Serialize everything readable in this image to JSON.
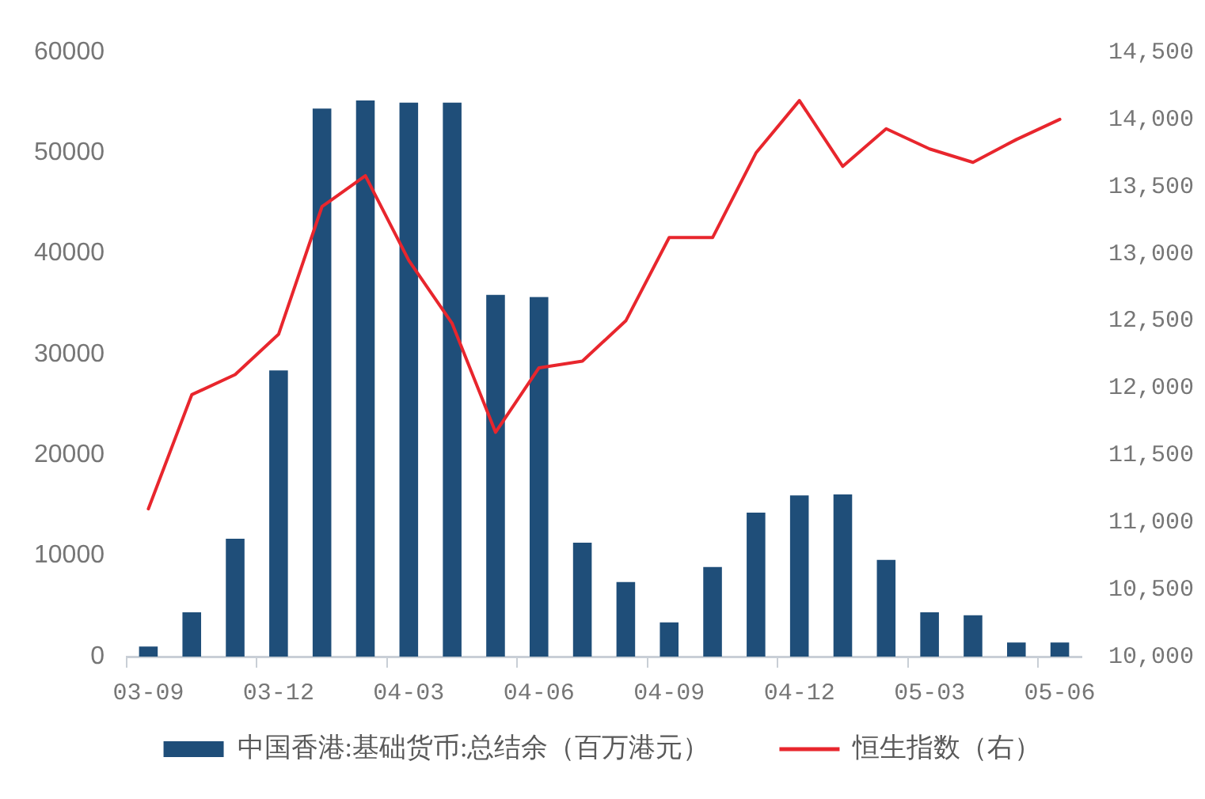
{
  "chart_data": {
    "type": "bar",
    "categories": [
      "03-09",
      null,
      null,
      "03-12",
      null,
      null,
      "04-03",
      null,
      null,
      "04-06",
      null,
      null,
      "04-09",
      null,
      null,
      "04-12",
      null,
      null,
      "05-03",
      null,
      null,
      "05-06"
    ],
    "series": [
      {
        "name": "中国香港:基础货币:总结余（百万港元）",
        "color": "#1f4e79",
        "values": [
          1000,
          4400,
          11700,
          28400,
          54400,
          55200,
          55000,
          55000,
          35900,
          35700,
          11300,
          7400,
          3400,
          8900,
          14300,
          16000,
          16100,
          9600,
          4400,
          4100,
          1400,
          1400
        ]
      },
      {
        "name": "恒生指数（右）",
        "type": "line",
        "axis": "y2",
        "color": "#e8262d",
        "values": [
          11100,
          11950,
          12100,
          12400,
          13350,
          13580,
          12950,
          12480,
          11670,
          12150,
          12200,
          12500,
          13120,
          13120,
          13750,
          14140,
          13650,
          13930,
          13780,
          13680,
          13850,
          14000
        ]
      }
    ],
    "ylim": [
      0,
      60000
    ],
    "yticks": [
      0,
      10000,
      20000,
      30000,
      40000,
      50000,
      60000
    ],
    "y2lim": [
      10000,
      14500
    ],
    "y2ticks": [
      {
        "value": 10000,
        "label": "10,000"
      },
      {
        "value": 10500,
        "label": "10,500"
      },
      {
        "value": 11000,
        "label": "11,000"
      },
      {
        "value": 11500,
        "label": "11,500"
      },
      {
        "value": 12000,
        "label": "12,000"
      },
      {
        "value": 12500,
        "label": "12,500"
      },
      {
        "value": 13000,
        "label": "13,000"
      },
      {
        "value": 13500,
        "label": "13,500"
      },
      {
        "value": 14000,
        "label": "14,000"
      },
      {
        "value": 14500,
        "label": "14,500"
      }
    ],
    "legend": "bottom",
    "marker": "none"
  }
}
